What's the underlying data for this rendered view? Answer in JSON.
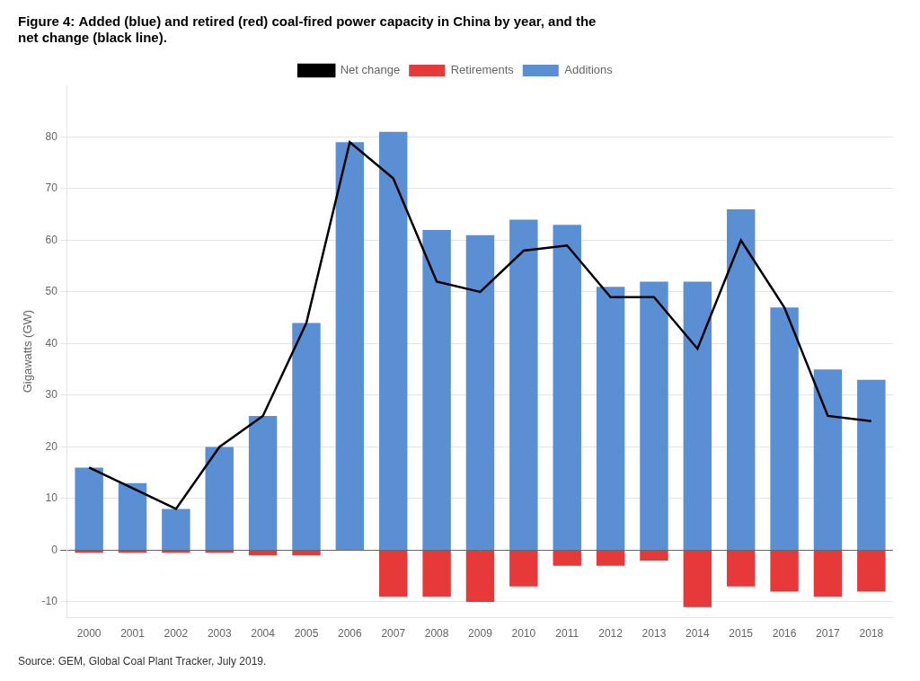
{
  "chart_data": {
    "type": "bar",
    "title": [
      "Figure 4: Added (blue) and retired (red) coal-fired power capacity in China by year, and the",
      "net change (black line)."
    ],
    "categories": [
      "2000",
      "2001",
      "2002",
      "2003",
      "2004",
      "2005",
      "2006",
      "2007",
      "2008",
      "2009",
      "2010",
      "2011",
      "2012",
      "2013",
      "2014",
      "2015",
      "2016",
      "2017",
      "2018"
    ],
    "series": [
      {
        "name": "Additions",
        "color": "#5b8fd4",
        "values": [
          16,
          13,
          8,
          20,
          26,
          44,
          79,
          81,
          62,
          61,
          64,
          63,
          51,
          52,
          52,
          66,
          47,
          35,
          33
        ]
      },
      {
        "name": "Retirements",
        "color": "#e8393a",
        "values": [
          -0.5,
          -0.5,
          -0.5,
          -0.5,
          -1,
          -1,
          0,
          -9,
          -9,
          -10,
          -7,
          -3,
          -3,
          -2,
          -11,
          -7,
          -8,
          -9,
          -8
        ]
      },
      {
        "name": "Net change",
        "type": "line",
        "color": "#000000",
        "line_style": "solid",
        "values": [
          16,
          12,
          8,
          20,
          26,
          44,
          79,
          72,
          52,
          50,
          58,
          59,
          49,
          49,
          39,
          60,
          47,
          26,
          25
        ]
      }
    ],
    "ylabel": "Gigawatts (GW)",
    "annotations": [
      "Source: GEM, Global Coal Plant Tracker, July 2019."
    ],
    "ylim": [
      -13,
      90
    ],
    "yticks": [
      -10,
      0,
      10,
      20,
      30,
      40,
      50,
      60,
      70,
      80
    ],
    "grid": true,
    "legend": "top"
  }
}
